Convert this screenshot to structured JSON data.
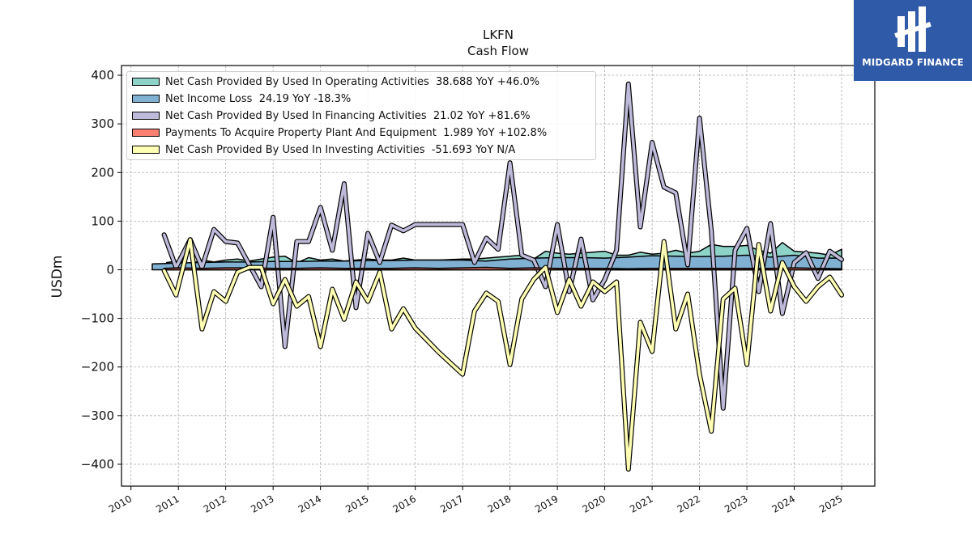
{
  "logo": {
    "text": "MIDGARD FINANCE",
    "bg": "#2f5aa8"
  },
  "chart_data": {
    "type": "line",
    "title": "LKFN",
    "subtitle": "Cash Flow",
    "ylabel": "USDm",
    "xlabel": "",
    "ylim": [
      -445,
      420
    ],
    "xlim": [
      2009.8,
      2025.7
    ],
    "grid": true,
    "legend_position": "top-left",
    "y_ticks": [
      -400,
      -300,
      -200,
      -100,
      0,
      100,
      200,
      300,
      400
    ],
    "y_tick_labels": [
      "−400",
      "−300",
      "−200",
      "−100",
      "0",
      "100",
      "200",
      "300",
      "400"
    ],
    "x_ticks": [
      2010,
      2011,
      2012,
      2013,
      2014,
      2015,
      2016,
      2017,
      2018,
      2019,
      2020,
      2021,
      2022,
      2023,
      2024,
      2025
    ],
    "x_tick_labels": [
      "2010",
      "2011",
      "2012",
      "2013",
      "2014",
      "2015",
      "2016",
      "2017",
      "2018",
      "2019",
      "2020",
      "2021",
      "2022",
      "2023",
      "2024",
      "2025"
    ],
    "series": [
      {
        "name": "Net Cash Provided By Used In Operating Activities",
        "legend_label": "Net Cash Provided By Used In Operating Activities  38.688 YoY +46.0%",
        "color": "#8dd3c7",
        "style": "area",
        "points": [
          [
            2010.75,
            15
          ],
          [
            2011.0,
            18
          ],
          [
            2011.25,
            12
          ],
          [
            2011.5,
            20
          ],
          [
            2011.75,
            16
          ],
          [
            2012.0,
            20
          ],
          [
            2012.25,
            22
          ],
          [
            2012.5,
            18
          ],
          [
            2012.75,
            22
          ],
          [
            2013.0,
            26
          ],
          [
            2013.25,
            28
          ],
          [
            2013.5,
            14
          ],
          [
            2013.75,
            25
          ],
          [
            2014.0,
            20
          ],
          [
            2014.25,
            22
          ],
          [
            2014.5,
            18
          ],
          [
            2014.75,
            20
          ],
          [
            2015.0,
            22
          ],
          [
            2015.25,
            20
          ],
          [
            2015.5,
            20
          ],
          [
            2015.75,
            24
          ],
          [
            2016.0,
            20
          ],
          [
            2016.5,
            20
          ],
          [
            2017.0,
            22
          ],
          [
            2017.25,
            22
          ],
          [
            2017.5,
            24
          ],
          [
            2017.75,
            26
          ],
          [
            2018.0,
            28
          ],
          [
            2018.25,
            30
          ],
          [
            2018.5,
            22
          ],
          [
            2018.75,
            38
          ],
          [
            2019.0,
            34
          ],
          [
            2019.25,
            32
          ],
          [
            2019.5,
            34
          ],
          [
            2019.75,
            36
          ],
          [
            2020.0,
            38
          ],
          [
            2020.25,
            30
          ],
          [
            2020.5,
            30
          ],
          [
            2020.75,
            36
          ],
          [
            2021.0,
            32
          ],
          [
            2021.25,
            34
          ],
          [
            2021.5,
            40
          ],
          [
            2021.75,
            34
          ],
          [
            2022.0,
            38
          ],
          [
            2022.25,
            52
          ],
          [
            2022.5,
            48
          ],
          [
            2022.75,
            48
          ],
          [
            2023.0,
            50
          ],
          [
            2023.25,
            40
          ],
          [
            2023.5,
            34
          ],
          [
            2023.75,
            56
          ],
          [
            2024.0,
            38
          ],
          [
            2024.25,
            36
          ],
          [
            2024.5,
            34
          ],
          [
            2024.75,
            30
          ],
          [
            2025.0,
            42
          ]
        ]
      },
      {
        "name": "Net Income Loss",
        "legend_label": "Net Income Loss  24.19 YoY -18.3%",
        "color": "#80b1d3",
        "style": "area",
        "points": [
          [
            2010.45,
            12
          ],
          [
            2010.75,
            13
          ],
          [
            2011.0,
            14
          ],
          [
            2011.5,
            15
          ],
          [
            2012.0,
            16
          ],
          [
            2012.5,
            16
          ],
          [
            2013.0,
            17
          ],
          [
            2013.5,
            17
          ],
          [
            2014.0,
            18
          ],
          [
            2014.5,
            18
          ],
          [
            2015.0,
            19
          ],
          [
            2015.5,
            19
          ],
          [
            2016.0,
            20
          ],
          [
            2016.5,
            20
          ],
          [
            2017.0,
            20
          ],
          [
            2017.5,
            18
          ],
          [
            2018.0,
            22
          ],
          [
            2018.5,
            24
          ],
          [
            2019.0,
            25
          ],
          [
            2019.5,
            25
          ],
          [
            2020.0,
            24
          ],
          [
            2020.5,
            26
          ],
          [
            2021.0,
            29
          ],
          [
            2021.5,
            28
          ],
          [
            2022.0,
            27
          ],
          [
            2022.5,
            28
          ],
          [
            2023.0,
            30
          ],
          [
            2023.5,
            26
          ],
          [
            2024.0,
            30
          ],
          [
            2024.5,
            24
          ],
          [
            2025.0,
            24
          ]
        ]
      },
      {
        "name": "Net Cash Provided By Used In Financing Activities",
        "legend_label": "Net Cash Provided By Used In Financing Activities  21.02 YoY +81.6%",
        "color": "#bebada",
        "style": "line",
        "points": [
          [
            2010.7,
            72
          ],
          [
            2010.95,
            5
          ],
          [
            2011.25,
            62
          ],
          [
            2011.5,
            5
          ],
          [
            2011.75,
            83
          ],
          [
            2012.0,
            58
          ],
          [
            2012.25,
            55
          ],
          [
            2012.5,
            10
          ],
          [
            2012.75,
            -35
          ],
          [
            2013.0,
            108
          ],
          [
            2013.25,
            -158
          ],
          [
            2013.5,
            58
          ],
          [
            2013.75,
            58
          ],
          [
            2014.0,
            128
          ],
          [
            2014.25,
            40
          ],
          [
            2014.5,
            177
          ],
          [
            2014.75,
            -78
          ],
          [
            2015.0,
            75
          ],
          [
            2015.25,
            15
          ],
          [
            2015.5,
            92
          ],
          [
            2015.75,
            80
          ],
          [
            2016.0,
            93
          ],
          [
            2016.5,
            93
          ],
          [
            2017.0,
            93
          ],
          [
            2017.25,
            15
          ],
          [
            2017.5,
            65
          ],
          [
            2017.75,
            42
          ],
          [
            2018.0,
            220
          ],
          [
            2018.25,
            30
          ],
          [
            2018.5,
            20
          ],
          [
            2018.75,
            -35
          ],
          [
            2019.0,
            93
          ],
          [
            2019.25,
            -45
          ],
          [
            2019.5,
            63
          ],
          [
            2019.75,
            -62
          ],
          [
            2020.0,
            -20
          ],
          [
            2020.25,
            40
          ],
          [
            2020.5,
            382
          ],
          [
            2020.75,
            88
          ],
          [
            2021.0,
            262
          ],
          [
            2021.25,
            170
          ],
          [
            2021.5,
            158
          ],
          [
            2021.75,
            10
          ],
          [
            2022.0,
            312
          ],
          [
            2022.25,
            80
          ],
          [
            2022.5,
            -285
          ],
          [
            2022.75,
            40
          ],
          [
            2023.0,
            85
          ],
          [
            2023.25,
            -45
          ],
          [
            2023.5,
            95
          ],
          [
            2023.75,
            -90
          ],
          [
            2024.0,
            15
          ],
          [
            2024.25,
            35
          ],
          [
            2024.5,
            -18
          ],
          [
            2024.75,
            38
          ],
          [
            2025.0,
            21
          ]
        ]
      },
      {
        "name": "Payments To Acquire Property Plant And Equipment",
        "legend_label": "Payments To Acquire Property Plant And Equipment  1.989 YoY +102.8%",
        "color": "#fb8072",
        "style": "area",
        "points": [
          [
            2010.7,
            3
          ],
          [
            2011.0,
            4
          ],
          [
            2011.5,
            3
          ],
          [
            2012.0,
            4
          ],
          [
            2012.5,
            4
          ],
          [
            2013.0,
            3
          ],
          [
            2013.5,
            3
          ],
          [
            2014.0,
            4
          ],
          [
            2014.5,
            3
          ],
          [
            2015.0,
            3
          ],
          [
            2015.5,
            3
          ],
          [
            2016.0,
            4
          ],
          [
            2016.5,
            3
          ],
          [
            2017.0,
            4
          ],
          [
            2017.5,
            5
          ],
          [
            2018.0,
            3
          ],
          [
            2018.5,
            4
          ],
          [
            2019.0,
            3
          ],
          [
            2019.5,
            3
          ],
          [
            2020.0,
            3
          ],
          [
            2020.5,
            2
          ],
          [
            2021.0,
            3
          ],
          [
            2021.5,
            3
          ],
          [
            2022.0,
            3
          ],
          [
            2022.5,
            3
          ],
          [
            2023.0,
            3
          ],
          [
            2023.5,
            3
          ],
          [
            2024.0,
            4
          ],
          [
            2024.5,
            3
          ],
          [
            2025.0,
            2
          ]
        ]
      },
      {
        "name": "Net Cash Provided By Used In Investing Activities",
        "legend_label": "Net Cash Provided By Used In Investing Activities  -51.693 YoY N/A",
        "color": "#ffffb3",
        "style": "line",
        "points": [
          [
            2010.7,
            -2
          ],
          [
            2010.95,
            -52
          ],
          [
            2011.25,
            62
          ],
          [
            2011.5,
            -122
          ],
          [
            2011.75,
            -45
          ],
          [
            2012.0,
            -65
          ],
          [
            2012.25,
            -5
          ],
          [
            2012.5,
            5
          ],
          [
            2012.75,
            5
          ],
          [
            2013.0,
            -70
          ],
          [
            2013.25,
            -20
          ],
          [
            2013.5,
            -75
          ],
          [
            2013.75,
            -55
          ],
          [
            2014.0,
            -158
          ],
          [
            2014.25,
            -40
          ],
          [
            2014.5,
            -102
          ],
          [
            2014.75,
            -25
          ],
          [
            2015.0,
            -65
          ],
          [
            2015.25,
            -5
          ],
          [
            2015.5,
            -122
          ],
          [
            2015.75,
            -80
          ],
          [
            2016.0,
            -120
          ],
          [
            2016.5,
            -170
          ],
          [
            2017.0,
            -215
          ],
          [
            2017.25,
            -85
          ],
          [
            2017.5,
            -48
          ],
          [
            2017.75,
            -65
          ],
          [
            2018.0,
            -195
          ],
          [
            2018.25,
            -60
          ],
          [
            2018.5,
            -20
          ],
          [
            2018.75,
            5
          ],
          [
            2019.0,
            -88
          ],
          [
            2019.25,
            -20
          ],
          [
            2019.5,
            -75
          ],
          [
            2019.75,
            -25
          ],
          [
            2020.0,
            -45
          ],
          [
            2020.25,
            -25
          ],
          [
            2020.5,
            -410
          ],
          [
            2020.75,
            -108
          ],
          [
            2021.0,
            -168
          ],
          [
            2021.25,
            58
          ],
          [
            2021.5,
            -122
          ],
          [
            2021.75,
            -50
          ],
          [
            2022.0,
            -215
          ],
          [
            2022.25,
            -332
          ],
          [
            2022.5,
            -60
          ],
          [
            2022.75,
            -38
          ],
          [
            2023.0,
            -195
          ],
          [
            2023.25,
            52
          ],
          [
            2023.5,
            -85
          ],
          [
            2023.75,
            15
          ],
          [
            2024.0,
            -35
          ],
          [
            2024.25,
            -65
          ],
          [
            2024.5,
            -35
          ],
          [
            2024.75,
            -15
          ],
          [
            2025.0,
            -52
          ]
        ]
      }
    ]
  }
}
